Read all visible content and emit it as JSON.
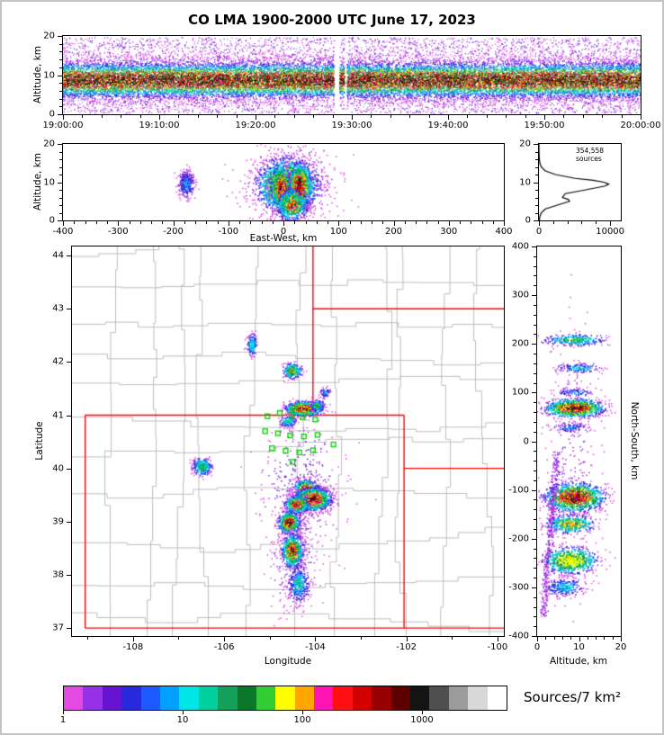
{
  "title": "CO LMA 1900-2000 UTC June 17, 2023",
  "colorbar": {
    "label": "Sources/7 km²",
    "scale_max": 5000,
    "ticks": [
      {
        "label": "1",
        "value": 1
      },
      {
        "label": "10",
        "value": 10
      },
      {
        "label": "100",
        "value": 100
      },
      {
        "label": "1000",
        "value": 1000
      }
    ],
    "colors": [
      "#e24ae2",
      "#9932e6",
      "#6414d2",
      "#2828dc",
      "#1e5aff",
      "#00a0ff",
      "#00e6e6",
      "#00cfa0",
      "#14a05a",
      "#0a7828",
      "#32cd32",
      "#ffff00",
      "#ffa500",
      "#ff14b4",
      "#ff0f0f",
      "#d20000",
      "#960000",
      "#5f0000",
      "#141414",
      "#505050",
      "#9b9b9b",
      "#d8d8d8",
      "#ffffff"
    ]
  },
  "chart_data": {
    "type": "composite",
    "description": "Lightning Mapping Array source plot: time-height, east-west cross-section, altitude histogram, plan-view map, north-south cross-section, log density colorbar",
    "panels": {
      "time_height": {
        "type": "scatter",
        "ylabel": "Altitude, km",
        "yticks": [
          "0",
          "10",
          "20"
        ],
        "xticks": [
          "19:00:00",
          "19:10:00",
          "19:20:00",
          "19:30:00",
          "19:40:00",
          "19:50:00",
          "20:00:00"
        ],
        "ylim_km": [
          0,
          20
        ],
        "n_points": 30000,
        "band_center_km": 8.7,
        "band_sd_km": 2.6,
        "gaps_frac": [
          [
            0.47,
            0.479
          ],
          [
            0.488,
            0.492
          ]
        ]
      },
      "east_west": {
        "type": "scatter",
        "xlabel": "East-West, km",
        "ylabel": "Altitude, km",
        "xticks": [
          "-400",
          "-300",
          "-200",
          "-100",
          "0",
          "100",
          "200",
          "300",
          "400"
        ],
        "yticks": [
          "0",
          "10",
          "20"
        ],
        "xlim": [
          -400,
          400
        ],
        "ylim": [
          0,
          20
        ],
        "clusters": [
          {
            "x": 10,
            "y": 10,
            "sx": 42,
            "sy": 4.6,
            "n": 420,
            "i": 0.2
          },
          {
            "x": -176,
            "y": 9.5,
            "sx": 7,
            "sy": 1.8,
            "n": 300,
            "i": 0.32
          },
          {
            "x": 8,
            "y": 9,
            "sx": 26,
            "sy": 3.4,
            "n": 2200,
            "i": 0.9
          },
          {
            "x": -4,
            "y": 8.5,
            "sx": 9,
            "sy": 2.6,
            "n": 900,
            "i": 1.0
          },
          {
            "x": 30,
            "y": 9,
            "sx": 10,
            "sy": 2.8,
            "n": 1000,
            "i": 1.0
          },
          {
            "x": 16,
            "y": 4,
            "sx": 13,
            "sy": 2.0,
            "n": 600,
            "i": 0.8
          }
        ]
      },
      "source_histogram": {
        "type": "line",
        "annotation": "354,558 sources",
        "xticks": [
          "0",
          "10000"
        ],
        "yticks": [
          "0",
          "10",
          "20"
        ],
        "xlim": [
          0,
          11500
        ],
        "profile_alt_count": [
          [
            0,
            50
          ],
          [
            1,
            130
          ],
          [
            2,
            320
          ],
          [
            3,
            900
          ],
          [
            4,
            2600
          ],
          [
            5,
            4300
          ],
          [
            5.5,
            4100
          ],
          [
            6,
            3300
          ],
          [
            7,
            3700
          ],
          [
            8,
            6600
          ],
          [
            9,
            9300
          ],
          [
            9.5,
            9800
          ],
          [
            10,
            9100
          ],
          [
            10.5,
            7600
          ],
          [
            11,
            5100
          ],
          [
            12,
            2300
          ],
          [
            13,
            850
          ],
          [
            14,
            320
          ],
          [
            15,
            130
          ],
          [
            16,
            60
          ],
          [
            17,
            28
          ],
          [
            18,
            12
          ],
          [
            19,
            6
          ],
          [
            20,
            3
          ]
        ]
      },
      "map": {
        "type": "scatter",
        "xlabel": "Longitude",
        "ylabel": "Latitude",
        "xticks": [
          "-108",
          "-106",
          "-104",
          "-102",
          "-100"
        ],
        "yticks": [
          "37",
          "38",
          "39",
          "40",
          "41",
          "42",
          "43",
          "44"
        ],
        "lon_range": [
          -109.34,
          -99.86
        ],
        "lat_range": [
          36.85,
          44.17
        ],
        "county_color": "#bdbdbd",
        "state_color": "#ff0000",
        "station_color": "#00cf00",
        "state_borders_lonlat": [
          [
            [
              -109.05,
              41
            ],
            [
              -109.05,
              37
            ]
          ],
          [
            [
              -109.05,
              37
            ],
            [
              -99.86,
              37
            ]
          ],
          [
            [
              -109.05,
              41
            ],
            [
              -102.05,
              41
            ]
          ],
          [
            [
              -102.05,
              41
            ],
            [
              -102.05,
              37
            ]
          ],
          [
            [
              -104.05,
              41
            ],
            [
              -104.05,
              44.17
            ]
          ],
          [
            [
              -104.05,
              43
            ],
            [
              -99.86,
              43
            ]
          ],
          [
            [
              -102.05,
              40
            ],
            [
              -99.86,
              40
            ]
          ]
        ],
        "stations_lonlat": [
          [
            -105.05,
            40.98
          ],
          [
            -104.78,
            41.04
          ],
          [
            -104.52,
            41.0
          ],
          [
            -104.28,
            40.96
          ],
          [
            -104.0,
            40.92
          ],
          [
            -105.1,
            40.7
          ],
          [
            -104.82,
            40.66
          ],
          [
            -104.55,
            40.62
          ],
          [
            -104.25,
            40.6
          ],
          [
            -103.95,
            40.63
          ],
          [
            -104.95,
            40.38
          ],
          [
            -104.65,
            40.33
          ],
          [
            -104.35,
            40.3
          ],
          [
            -104.05,
            40.34
          ],
          [
            -104.5,
            40.12
          ],
          [
            -103.6,
            40.45
          ]
        ],
        "clusters": [
          {
            "x": -104.3,
            "y": 39.6,
            "sx": 0.45,
            "sy": 0.6,
            "n": 380,
            "i": 0.16
          },
          {
            "x": -104.45,
            "y": 38.2,
            "sx": 0.28,
            "sy": 0.5,
            "n": 220,
            "i": 0.14
          },
          {
            "x": -105.38,
            "y": 42.32,
            "sx": 0.05,
            "sy": 0.1,
            "n": 170,
            "i": 0.5,
            "maxc": 6
          },
          {
            "x": -104.5,
            "y": 41.83,
            "sx": 0.1,
            "sy": 0.07,
            "n": 260,
            "i": 0.7
          },
          {
            "x": -103.78,
            "y": 41.42,
            "sx": 0.06,
            "sy": 0.05,
            "n": 70,
            "i": 0.3
          },
          {
            "x": -104.24,
            "y": 41.12,
            "sx": 0.19,
            "sy": 0.065,
            "n": 850,
            "i": 1.0
          },
          {
            "x": -103.95,
            "y": 41.18,
            "sx": 0.07,
            "sy": 0.05,
            "n": 150,
            "i": 0.6
          },
          {
            "x": -104.6,
            "y": 40.88,
            "sx": 0.09,
            "sy": 0.05,
            "n": 140,
            "i": 0.5
          },
          {
            "x": -106.48,
            "y": 40.03,
            "sx": 0.1,
            "sy": 0.08,
            "n": 280,
            "i": 0.6,
            "maxc": 8
          },
          {
            "x": -104.2,
            "y": 39.62,
            "sx": 0.13,
            "sy": 0.08,
            "n": 520,
            "i": 0.85
          },
          {
            "x": -104.05,
            "y": 39.42,
            "sx": 0.19,
            "sy": 0.1,
            "n": 1400,
            "i": 1.0
          },
          {
            "x": -104.4,
            "y": 39.32,
            "sx": 0.12,
            "sy": 0.08,
            "n": 600,
            "i": 0.9
          },
          {
            "x": -104.57,
            "y": 38.98,
            "sx": 0.11,
            "sy": 0.1,
            "n": 700,
            "i": 0.95
          },
          {
            "x": -104.5,
            "y": 38.45,
            "sx": 0.11,
            "sy": 0.15,
            "n": 800,
            "i": 0.9
          },
          {
            "x": -104.36,
            "y": 37.82,
            "sx": 0.11,
            "sy": 0.17,
            "n": 360,
            "i": 0.45
          }
        ]
      },
      "north_south": {
        "type": "scatter",
        "xlabel": "Altitude, km",
        "ylabel": "North-South, km",
        "xticks": [
          "0",
          "10",
          "20"
        ],
        "yticks": [
          "-400",
          "-300",
          "-200",
          "-100",
          "0",
          "100",
          "200",
          "300",
          "400"
        ],
        "xlim": [
          0,
          20
        ],
        "ylim": [
          -400,
          400
        ],
        "clusters": [
          {
            "x": 8,
            "y": -40,
            "sx": 3.5,
            "sy": 150,
            "n": 260,
            "i": 0.1
          },
          {
            "x": 9,
            "y": 208,
            "sx": 3.6,
            "sy": 6,
            "n": 300,
            "i": 0.55
          },
          {
            "x": 10,
            "y": 150,
            "sx": 2.6,
            "sy": 5,
            "n": 150,
            "i": 0.4
          },
          {
            "x": 9,
            "y": 100,
            "sx": 2.2,
            "sy": 4,
            "n": 90,
            "i": 0.32
          },
          {
            "x": 9,
            "y": 68,
            "sx": 3.4,
            "sy": 9,
            "n": 1100,
            "i": 1.0
          },
          {
            "x": 8,
            "y": 28,
            "sx": 2,
            "sy": 5,
            "n": 110,
            "i": 0.3
          },
          {
            "x": 9,
            "y": -115,
            "sx": 3.4,
            "sy": 14,
            "n": 1400,
            "i": 1.0
          },
          {
            "x": 8,
            "y": -170,
            "sx": 2.8,
            "sy": 9,
            "n": 420,
            "i": 0.75,
            "maxc": 12
          },
          {
            "x": 8,
            "y": -245,
            "sx": 3.0,
            "sy": 13,
            "n": 800,
            "i": 0.85,
            "maxc": 11
          },
          {
            "x": 6.5,
            "y": -300,
            "sx": 2.3,
            "sy": 9,
            "n": 260,
            "i": 0.4
          }
        ],
        "terrain_arc": {
          "ns_from": -20,
          "ns_to": -360,
          "alt_at_from": 4.8,
          "alt_at_to": 1.5,
          "sd": 0.45,
          "n": 420,
          "maxc": 2
        }
      }
    }
  }
}
